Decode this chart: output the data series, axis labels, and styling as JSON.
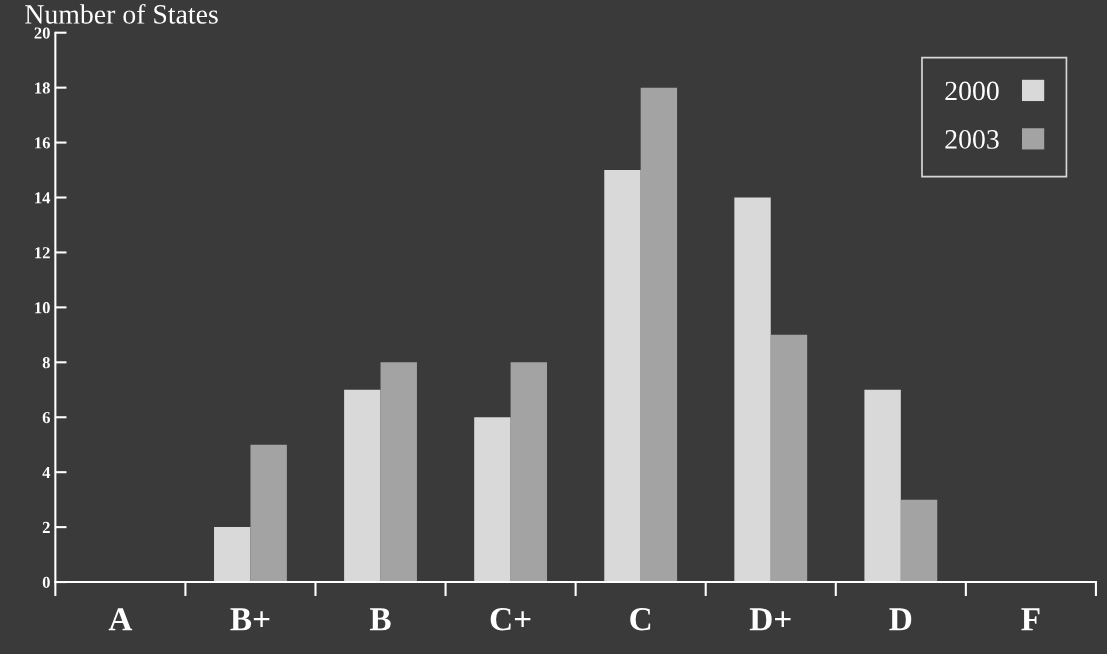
{
  "chart_data": {
    "type": "bar",
    "ylabel": "Number of States",
    "categories": [
      "A",
      "B+",
      "B",
      "C+",
      "C",
      "D+",
      "D",
      "F"
    ],
    "series": [
      {
        "name": "2000",
        "color": "#d9d9d9",
        "values": [
          0,
          2,
          7,
          6,
          15,
          14,
          7,
          0
        ]
      },
      {
        "name": "2003",
        "color": "#a3a3a3",
        "values": [
          0,
          5,
          8,
          8,
          18,
          9,
          3,
          0
        ]
      }
    ],
    "ylim": [
      0,
      20
    ],
    "yticks": [
      0,
      2,
      4,
      6,
      8,
      10,
      12,
      14,
      16,
      18,
      20
    ],
    "grid": false,
    "legend": "top right"
  }
}
